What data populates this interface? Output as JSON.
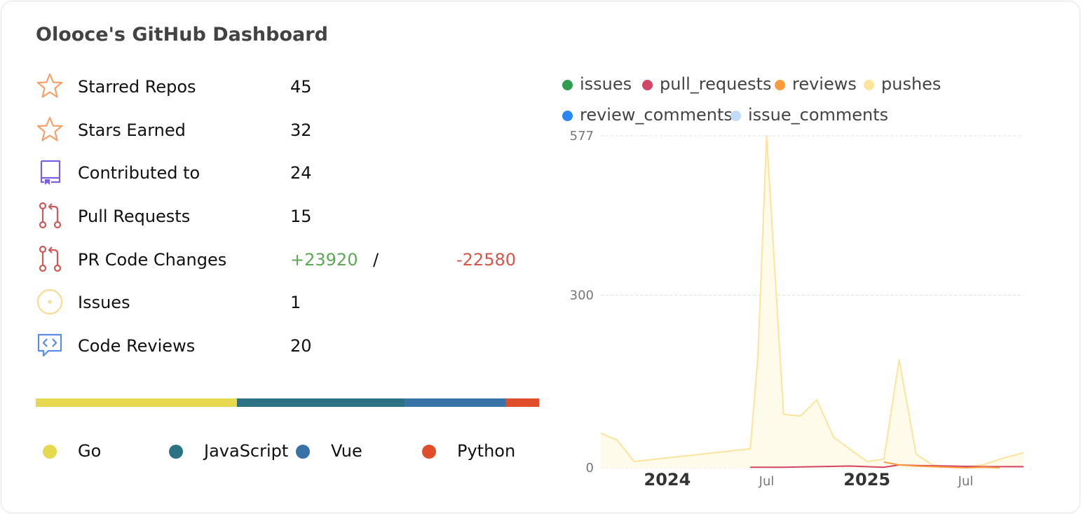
{
  "title": "Olooce's GitHub Dashboard",
  "stats": [
    {
      "label": "Starred Repos",
      "value": "45",
      "icon": "star-icon"
    },
    {
      "label": "Stars Earned",
      "value": "32",
      "icon": "star-icon"
    },
    {
      "label": "Contributed to",
      "value": "24",
      "icon": "repo-icon"
    },
    {
      "label": "Pull Requests",
      "value": "15",
      "icon": "pull-request-icon"
    },
    {
      "label": "PR Code Changes",
      "additions": "+23920",
      "separator": "/",
      "deletions": "-22580",
      "icon": "pull-request-icon"
    },
    {
      "label": "Issues",
      "value": "1",
      "icon": "issue-icon"
    },
    {
      "label": "Code Reviews",
      "value": "20",
      "icon": "code-review-icon"
    }
  ],
  "languages": [
    {
      "name": "Go",
      "color": "#e6d94f",
      "share": 0.4
    },
    {
      "name": "JavaScript",
      "color": "#2b7384",
      "share": 0.333
    },
    {
      "name": "Vue",
      "color": "#3873a7",
      "share": 0.2
    },
    {
      "name": "Python",
      "color": "#e04d2a",
      "share": 0.067
    }
  ],
  "colors": {
    "star": "#f6a06b",
    "repo": "#7b5fe0",
    "pull_request": "#cc5a5a",
    "issue": "#f7dd94",
    "code_review": "#5b8de8",
    "additions": "#5fa858",
    "deletions": "#d4574a"
  },
  "chart_data": {
    "type": "area",
    "legend": [
      {
        "name": "issues",
        "color": "#2f9e51"
      },
      {
        "name": "pull_requests",
        "color": "#d24565"
      },
      {
        "name": "reviews",
        "color": "#ff9b3d"
      },
      {
        "name": "pushes",
        "color": "#fde49a"
      },
      {
        "name": "review_comments",
        "color": "#2a86f2"
      },
      {
        "name": "issue_comments",
        "color": "#c1dbfb"
      }
    ],
    "y_ticks": [
      "577",
      "300",
      "0"
    ],
    "ylim": [
      0,
      577
    ],
    "x_ticks": [
      {
        "label": "2024",
        "date": "2024-01-01",
        "bold": true
      },
      {
        "label": "Jul",
        "date": "2024-07-01",
        "bold": false
      },
      {
        "label": "2025",
        "date": "2025-01-01",
        "bold": true
      },
      {
        "label": "Jul",
        "date": "2025-07-01",
        "bold": false
      }
    ],
    "xlim": [
      "2023-09-01",
      "2025-10-15"
    ],
    "grid": true,
    "series": [
      {
        "name": "pushes",
        "x": [
          "2023-09-01",
          "2023-10-01",
          "2023-11-01",
          "2024-06-01",
          "2024-06-15",
          "2024-07-01",
          "2024-08-01",
          "2024-09-01",
          "2024-10-01",
          "2024-11-01",
          "2024-12-01",
          "2025-01-01",
          "2025-02-01",
          "2025-03-01",
          "2025-04-01",
          "2025-05-01",
          "2025-06-01",
          "2025-07-01",
          "2025-08-01",
          "2025-09-01",
          "2025-10-15"
        ],
        "y": [
          60,
          48,
          11,
          33,
          193,
          577,
          93,
          90,
          118,
          53,
          32,
          11,
          15,
          188,
          24,
          5,
          2,
          2,
          5,
          15,
          26
        ]
      },
      {
        "name": "pull_requests",
        "x": [
          "2024-06-01",
          "2024-08-01",
          "2024-10-01",
          "2024-12-01",
          "2025-01-01",
          "2025-02-01",
          "2025-03-01",
          "2025-04-01",
          "2025-06-01",
          "2025-08-01",
          "2025-10-15"
        ],
        "y": [
          1,
          1,
          2,
          3,
          2,
          1,
          5,
          4,
          3,
          2,
          2
        ]
      },
      {
        "name": "reviews",
        "x": [
          "2025-02-01",
          "2025-03-01",
          "2025-04-01",
          "2025-06-01",
          "2025-07-01",
          "2025-08-01",
          "2025-09-01"
        ],
        "y": [
          10,
          5,
          3,
          1,
          0,
          1,
          0
        ]
      }
    ]
  }
}
